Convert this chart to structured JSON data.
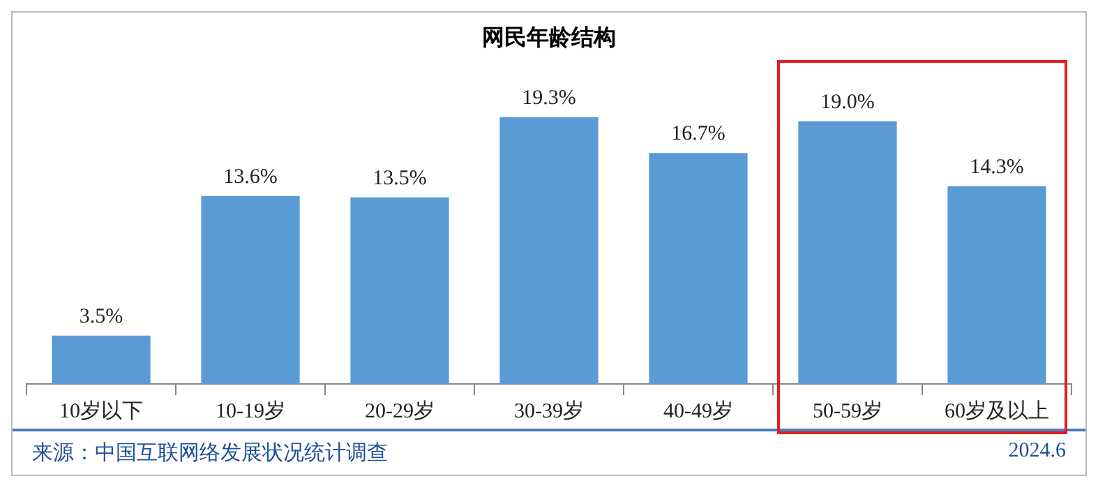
{
  "chart_data": {
    "type": "bar",
    "title": "网民年龄结构",
    "categories": [
      "10岁以下",
      "10-19岁",
      "20-29岁",
      "30-39岁",
      "40-49岁",
      "50-59岁",
      "60岁及以上"
    ],
    "values": [
      3.5,
      13.6,
      13.5,
      19.3,
      16.7,
      19.0,
      14.3
    ],
    "value_labels": [
      "3.5%",
      "13.6%",
      "13.5%",
      "19.3%",
      "16.7%",
      "19.0%",
      "14.3%"
    ],
    "color": "#5b9bd5",
    "grid": false,
    "legend": false,
    "annotations": [
      "来源：中国互联网络发展状况统计调查",
      "2024.6"
    ]
  }
}
